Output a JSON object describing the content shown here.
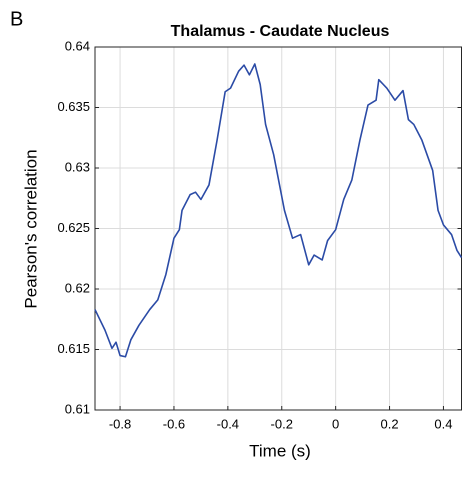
{
  "panel_label": "B",
  "chart_data": {
    "type": "line",
    "title": "Thalamus - Caudate Nucleus",
    "xlabel": "Time (s)",
    "ylabel": "Pearson's correlation",
    "x": [
      -0.893,
      -0.856,
      -0.83,
      -0.815,
      -0.8,
      -0.78,
      -0.76,
      -0.73,
      -0.69,
      -0.66,
      -0.63,
      -0.6,
      -0.58,
      -0.57,
      -0.54,
      -0.52,
      -0.5,
      -0.47,
      -0.44,
      -0.41,
      -0.39,
      -0.36,
      -0.34,
      -0.32,
      -0.3,
      -0.28,
      -0.26,
      -0.23,
      -0.19,
      -0.16,
      -0.13,
      -0.1,
      -0.08,
      -0.05,
      -0.03,
      0,
      0.03,
      0.06,
      0.09,
      0.12,
      0.15,
      0.16,
      0.19,
      0.22,
      0.25,
      0.27,
      0.29,
      0.32,
      0.36,
      0.38,
      0.4,
      0.43,
      0.45,
      0.467
    ],
    "series": [
      {
        "name": "Thalamus - Caudate Nucleus",
        "color": "#2b4ba6",
        "values": [
          0.6183,
          0.6166,
          0.6151,
          0.6156,
          0.6145,
          0.6144,
          0.6158,
          0.617,
          0.6183,
          0.6191,
          0.6212,
          0.6242,
          0.6249,
          0.6265,
          0.6278,
          0.628,
          0.6274,
          0.6286,
          0.6323,
          0.6363,
          0.6366,
          0.638,
          0.6385,
          0.6377,
          0.6386,
          0.6369,
          0.6336,
          0.6311,
          0.6265,
          0.6242,
          0.6245,
          0.622,
          0.6228,
          0.6224,
          0.624,
          0.6249,
          0.6274,
          0.629,
          0.6323,
          0.6352,
          0.6356,
          0.6373,
          0.6366,
          0.6356,
          0.6364,
          0.634,
          0.6336,
          0.6323,
          0.6298,
          0.6265,
          0.6253,
          0.6245,
          0.6232,
          0.6226
        ]
      }
    ],
    "xlim": [
      -0.893,
      0.467
    ],
    "ylim": [
      0.61,
      0.64
    ],
    "xticks": [
      -0.8,
      -0.6,
      -0.4,
      -0.2,
      0,
      0.2,
      0.4
    ],
    "yticks": [
      0.61,
      0.615,
      0.62,
      0.625,
      0.63,
      0.635,
      0.64
    ],
    "grid": true
  }
}
